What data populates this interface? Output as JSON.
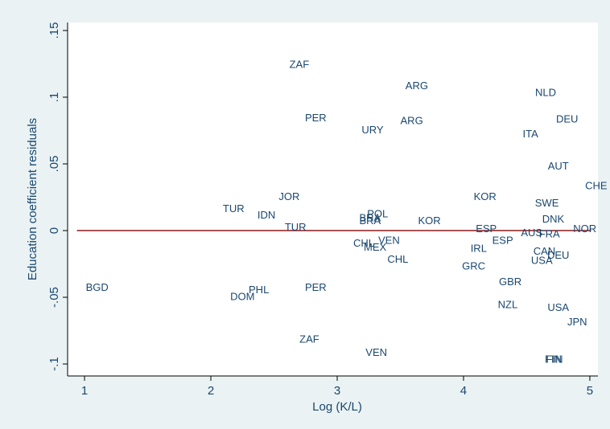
{
  "chart_data": {
    "type": "scatter-label",
    "x_label": "Log (K/L)",
    "y_label": "Education coefficient residuals",
    "labels": [
      "ZAF",
      "ARG",
      "NLD",
      "PER",
      "DEU",
      "ARG",
      "URY",
      "ITA",
      "AUT",
      "CHE",
      "JOR",
      "KOR",
      "SWE",
      "TUR",
      "POL",
      "IDN",
      "BRA",
      "BRA",
      "DNK",
      "KOR",
      "TUR",
      "ESP",
      "NOR",
      "AUS",
      "FRA",
      "ESP",
      "VEN",
      "CHL",
      "MEX",
      "CAN",
      "IRL",
      "DEU",
      "CHL",
      "USA",
      "GRC",
      "GBR",
      "BGD",
      "PER",
      "PHL",
      "DOM",
      "NZL",
      "USA",
      "JPN",
      "ZAF",
      "VEN",
      "FIN",
      "FIN"
    ],
    "x": [
      2.7,
      3.63,
      4.65,
      2.83,
      4.82,
      3.59,
      3.28,
      4.53,
      4.75,
      5.05,
      2.62,
      4.17,
      4.66,
      2.18,
      3.32,
      2.44,
      3.26,
      3.26,
      4.71,
      3.73,
      2.67,
      4.18,
      4.96,
      4.54,
      4.68,
      4.31,
      3.41,
      3.21,
      3.3,
      4.64,
      4.12,
      4.75,
      3.48,
      4.62,
      4.08,
      4.37,
      1.1,
      2.83,
      2.38,
      2.25,
      4.35,
      4.75,
      4.9,
      2.78,
      3.31,
      4.71,
      4.72
    ],
    "y": [
      0.124,
      0.108,
      0.103,
      0.084,
      0.083,
      0.082,
      0.075,
      0.072,
      0.048,
      0.033,
      0.025,
      0.025,
      0.02,
      0.016,
      0.012,
      0.011,
      0.009,
      0.007,
      0.008,
      0.007,
      0.002,
      0.001,
      0.001,
      -0.002,
      -0.003,
      -0.008,
      -0.008,
      -0.01,
      -0.013,
      -0.016,
      -0.014,
      -0.019,
      -0.022,
      -0.023,
      -0.027,
      -0.039,
      -0.043,
      -0.043,
      -0.045,
      -0.05,
      -0.056,
      -0.058,
      -0.069,
      -0.082,
      -0.092,
      -0.097,
      -0.097
    ],
    "color": "#1a476f",
    "reference_line": {
      "x": [
        0.94,
        5.01
      ],
      "y": [
        0,
        0
      ],
      "color": "#8b1a1a"
    },
    "xlim": [
      0.866,
      5.064
    ],
    "xticks": [
      1,
      2,
      3,
      4,
      5
    ],
    "ylim": [
      -0.109,
      0.156
    ],
    "yticks": [
      {
        "value": -0.1,
        "label": "-.1"
      },
      {
        "value": -0.05,
        "label": "-.05"
      },
      {
        "value": 0,
        "label": "0"
      },
      {
        "value": 0.05,
        "label": ".05"
      },
      {
        "value": 0.1,
        "label": ".1"
      },
      {
        "value": 0.15,
        "label": ".15"
      }
    ],
    "grid": false
  }
}
